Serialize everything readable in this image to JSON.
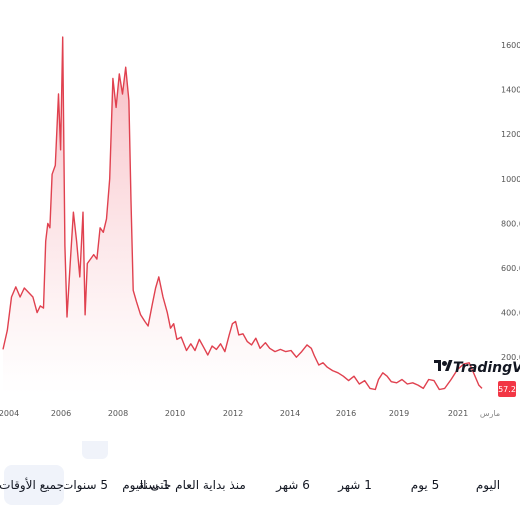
{
  "chart_data": {
    "type": "area",
    "x_ticks": [
      "2004",
      "2006",
      "2008",
      "2010",
      "2012",
      "2014",
      "2016",
      "2019",
      "2021"
    ],
    "y_ticks": [
      "1600.0",
      "1400.0",
      "1200.0",
      "1000.0",
      "800.0",
      "600.0",
      "400.0",
      "200.0"
    ],
    "ylim": [
      35,
      1640
    ],
    "last_value": "57.2",
    "currency": "مارس",
    "watermark": "TradingView",
    "colors": {
      "line": "#e0414f",
      "fill_top": "#f7b6bd",
      "fill_bottom": "#ffffff",
      "badge": "#f23645"
    },
    "series": [
      {
        "values": [
          [
            2003.0,
            235
          ],
          [
            2003.2,
            320
          ],
          [
            2003.4,
            470
          ],
          [
            2003.6,
            515
          ],
          [
            2003.8,
            470
          ],
          [
            2004.0,
            510
          ],
          [
            2004.2,
            490
          ],
          [
            2004.4,
            470
          ],
          [
            2004.6,
            400
          ],
          [
            2004.75,
            430
          ],
          [
            2004.9,
            420
          ],
          [
            2005.0,
            720
          ],
          [
            2005.1,
            800
          ],
          [
            2005.2,
            780
          ],
          [
            2005.3,
            1020
          ],
          [
            2005.45,
            1060
          ],
          [
            2005.6,
            1380
          ],
          [
            2005.7,
            1130
          ],
          [
            2005.8,
            1635
          ],
          [
            2005.9,
            700
          ],
          [
            2006.0,
            380
          ],
          [
            2006.15,
            620
          ],
          [
            2006.3,
            850
          ],
          [
            2006.45,
            720
          ],
          [
            2006.6,
            560
          ],
          [
            2006.75,
            850
          ],
          [
            2006.85,
            390
          ],
          [
            2006.95,
            620
          ],
          [
            2007.1,
            640
          ],
          [
            2007.25,
            660
          ],
          [
            2007.4,
            640
          ],
          [
            2007.55,
            780
          ],
          [
            2007.7,
            760
          ],
          [
            2007.85,
            820
          ],
          [
            2008.0,
            1000
          ],
          [
            2008.15,
            1450
          ],
          [
            2008.3,
            1320
          ],
          [
            2008.45,
            1470
          ],
          [
            2008.6,
            1380
          ],
          [
            2008.75,
            1500
          ],
          [
            2008.9,
            1350
          ],
          [
            2009.0,
            900
          ],
          [
            2009.1,
            500
          ],
          [
            2009.25,
            450
          ],
          [
            2009.45,
            390
          ],
          [
            2009.65,
            360
          ],
          [
            2009.8,
            340
          ],
          [
            2010.0,
            440
          ],
          [
            2010.15,
            510
          ],
          [
            2010.3,
            560
          ],
          [
            2010.5,
            470
          ],
          [
            2010.7,
            400
          ],
          [
            2010.85,
            330
          ],
          [
            2011.0,
            350
          ],
          [
            2011.15,
            280
          ],
          [
            2011.35,
            290
          ],
          [
            2011.6,
            230
          ],
          [
            2011.8,
            260
          ],
          [
            2012.0,
            230
          ],
          [
            2012.2,
            280
          ],
          [
            2012.4,
            245
          ],
          [
            2012.6,
            210
          ],
          [
            2012.8,
            250
          ],
          [
            2013.0,
            235
          ],
          [
            2013.2,
            260
          ],
          [
            2013.4,
            225
          ],
          [
            2013.6,
            300
          ],
          [
            2013.75,
            350
          ],
          [
            2013.9,
            360
          ],
          [
            2014.05,
            300
          ],
          [
            2014.25,
            305
          ],
          [
            2014.45,
            270
          ],
          [
            2014.65,
            255
          ],
          [
            2014.85,
            285
          ],
          [
            2015.05,
            240
          ],
          [
            2015.3,
            265
          ],
          [
            2015.5,
            240
          ],
          [
            2015.75,
            225
          ],
          [
            2016.0,
            235
          ],
          [
            2016.25,
            225
          ],
          [
            2016.5,
            230
          ],
          [
            2016.75,
            200
          ],
          [
            2017.0,
            225
          ],
          [
            2017.25,
            255
          ],
          [
            2017.45,
            240
          ],
          [
            2017.6,
            205
          ],
          [
            2017.8,
            165
          ],
          [
            2018.0,
            175
          ],
          [
            2018.2,
            155
          ],
          [
            2018.45,
            140
          ],
          [
            2018.7,
            130
          ],
          [
            2018.95,
            115
          ],
          [
            2019.2,
            95
          ],
          [
            2019.45,
            115
          ],
          [
            2019.7,
            80
          ],
          [
            2019.95,
            95
          ],
          [
            2020.2,
            60
          ],
          [
            2020.45,
            55
          ],
          [
            2020.6,
            100
          ],
          [
            2020.8,
            130
          ],
          [
            2021.0,
            115
          ],
          [
            2021.2,
            90
          ],
          [
            2021.45,
            85
          ],
          [
            2021.7,
            100
          ],
          [
            2021.95,
            80
          ],
          [
            2022.2,
            85
          ],
          [
            2022.45,
            75
          ],
          [
            2022.7,
            60
          ],
          [
            2022.95,
            100
          ],
          [
            2023.2,
            95
          ],
          [
            2023.45,
            55
          ],
          [
            2023.7,
            60
          ],
          [
            2024.0,
            100
          ],
          [
            2024.3,
            145
          ],
          [
            2024.6,
            170
          ],
          [
            2024.85,
            175
          ],
          [
            2025.1,
            120
          ],
          [
            2025.3,
            75
          ],
          [
            2025.45,
            60
          ]
        ]
      }
    ]
  },
  "ranges": {
    "today": "اليوم",
    "five_days": "5 يوم",
    "one_month": "1 شهر",
    "six_months": "6 شهر",
    "ytd": "منذ بداية العام حتى اليوم",
    "one_year": "1 سنة",
    "five_years": "5 سنوات",
    "all": "جميع الأوقات"
  }
}
